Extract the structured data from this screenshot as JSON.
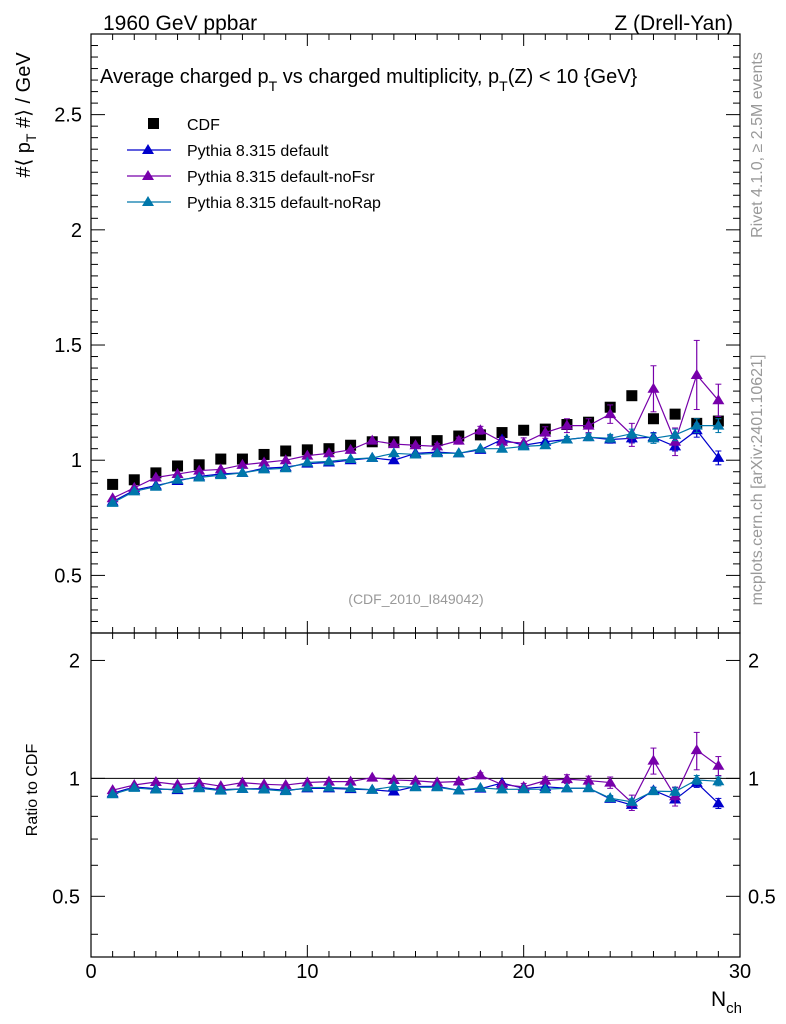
{
  "header": {
    "left": "1960 GeV ppbar",
    "right": "Z (Drell-Yan)"
  },
  "side_labels": {
    "rivet": "Rivet 4.1.0, ≥ 2.5M events",
    "mcplots": "mcplots.cern.ch [arXiv:2401.10621]"
  },
  "colors": {
    "cdf": "#000000",
    "default": "#0000cc",
    "noFsr": "#7700aa",
    "noRap": "#0077aa",
    "watermark": "#999999",
    "side": "#999999"
  },
  "chart_data": {
    "type": "line",
    "title": "Average charged p_T vs charged multiplicity, p_T(Z) < 10 {GeV}",
    "title_parts": {
      "a": "Average charged p",
      "a_sub": "T",
      "b": " vs charged multiplicity, p",
      "b_sub": "T",
      "c": "(Z) < 10 {GeV}"
    },
    "ylabel_parts": {
      "a": "#⟨ p",
      "sub": "T",
      "b": " #⟩ / GeV"
    },
    "xlabel": {
      "main": "N",
      "sub": "ch"
    },
    "ratio_ylabel": "Ratio to CDF",
    "analysis_tag": "(CDF_2010_I849042)",
    "xlim": [
      0,
      30
    ],
    "ylim": [
      0.25,
      2.85
    ],
    "ratio_ylim": [
      0.35,
      2.35
    ],
    "x_ticks": [
      "0",
      "10",
      "20",
      "30"
    ],
    "x_tick_values": [
      0,
      10,
      20,
      30
    ],
    "y_ticks": [
      "0.5",
      "1",
      "1.5",
      "2",
      "2.5"
    ],
    "y_tick_values": [
      0.5,
      1,
      1.5,
      2,
      2.5
    ],
    "ratio_ticks": [
      "0.5",
      "1",
      "2"
    ],
    "ratio_tick_values": [
      0.5,
      1,
      2
    ],
    "x": [
      1,
      2,
      3,
      4,
      5,
      6,
      7,
      8,
      9,
      10,
      11,
      12,
      13,
      14,
      15,
      16,
      17,
      18,
      19,
      20,
      21,
      22,
      23,
      24,
      25,
      26,
      27,
      28,
      29
    ],
    "series": [
      {
        "name": "CDF",
        "key": "cdf",
        "marker": "square",
        "values": [
          0.895,
          0.915,
          0.945,
          0.975,
          0.98,
          1.005,
          1.005,
          1.025,
          1.04,
          1.045,
          1.05,
          1.065,
          1.08,
          1.08,
          1.08,
          1.085,
          1.105,
          1.11,
          1.12,
          1.13,
          1.135,
          1.155,
          1.165,
          1.23,
          1.28,
          1.18,
          1.2,
          1.16,
          1.17
        ],
        "errors": [
          0,
          0,
          0,
          0,
          0,
          0,
          0,
          0,
          0,
          0,
          0,
          0,
          0,
          0,
          0,
          0,
          0,
          0,
          0,
          0,
          0,
          0,
          0,
          0,
          0,
          0,
          0,
          0,
          0
        ]
      },
      {
        "name": "Pythia 8.315 default",
        "key": "default",
        "marker": "triangle",
        "values": [
          0.82,
          0.87,
          0.89,
          0.91,
          0.93,
          0.94,
          0.945,
          0.965,
          0.97,
          0.985,
          0.99,
          1.0,
          1.01,
          1.0,
          1.03,
          1.035,
          1.03,
          1.045,
          1.09,
          1.065,
          1.08,
          1.09,
          1.1,
          1.09,
          1.095,
          1.1,
          1.06,
          1.13,
          1.01
        ],
        "errors": [
          0.005,
          0.005,
          0.005,
          0.005,
          0.005,
          0.005,
          0.005,
          0.005,
          0.005,
          0.005,
          0.005,
          0.005,
          0.005,
          0.005,
          0.005,
          0.006,
          0.007,
          0.008,
          0.009,
          0.01,
          0.011,
          0.012,
          0.014,
          0.016,
          0.02,
          0.02,
          0.02,
          0.03,
          0.03
        ]
      },
      {
        "name": "Pythia 8.315 default-noFsr",
        "key": "noFsr",
        "marker": "triangle",
        "values": [
          0.835,
          0.88,
          0.925,
          0.94,
          0.955,
          0.96,
          0.98,
          0.99,
          1.0,
          1.02,
          1.03,
          1.045,
          1.085,
          1.07,
          1.065,
          1.06,
          1.085,
          1.13,
          1.08,
          1.075,
          1.12,
          1.15,
          1.15,
          1.2,
          1.11,
          1.31,
          1.08,
          1.37,
          1.26
        ],
        "errors": [
          0.005,
          0.005,
          0.005,
          0.005,
          0.005,
          0.005,
          0.005,
          0.006,
          0.006,
          0.007,
          0.008,
          0.009,
          0.01,
          0.011,
          0.012,
          0.013,
          0.015,
          0.017,
          0.02,
          0.022,
          0.025,
          0.03,
          0.03,
          0.04,
          0.05,
          0.1,
          0.06,
          0.15,
          0.07
        ]
      },
      {
        "name": "Pythia 8.315 default-noRap",
        "key": "noRap",
        "marker": "triangle",
        "values": [
          0.815,
          0.865,
          0.885,
          0.915,
          0.925,
          0.935,
          0.945,
          0.96,
          0.965,
          0.99,
          0.995,
          1.005,
          1.01,
          1.03,
          1.025,
          1.03,
          1.03,
          1.05,
          1.05,
          1.06,
          1.065,
          1.09,
          1.1,
          1.095,
          1.115,
          1.095,
          1.11,
          1.15,
          1.15
        ],
        "errors": [
          0.005,
          0.005,
          0.005,
          0.005,
          0.005,
          0.005,
          0.005,
          0.005,
          0.005,
          0.005,
          0.005,
          0.005,
          0.005,
          0.005,
          0.006,
          0.007,
          0.008,
          0.009,
          0.01,
          0.011,
          0.012,
          0.013,
          0.015,
          0.017,
          0.02,
          0.022,
          0.025,
          0.03,
          0.03
        ]
      }
    ]
  }
}
